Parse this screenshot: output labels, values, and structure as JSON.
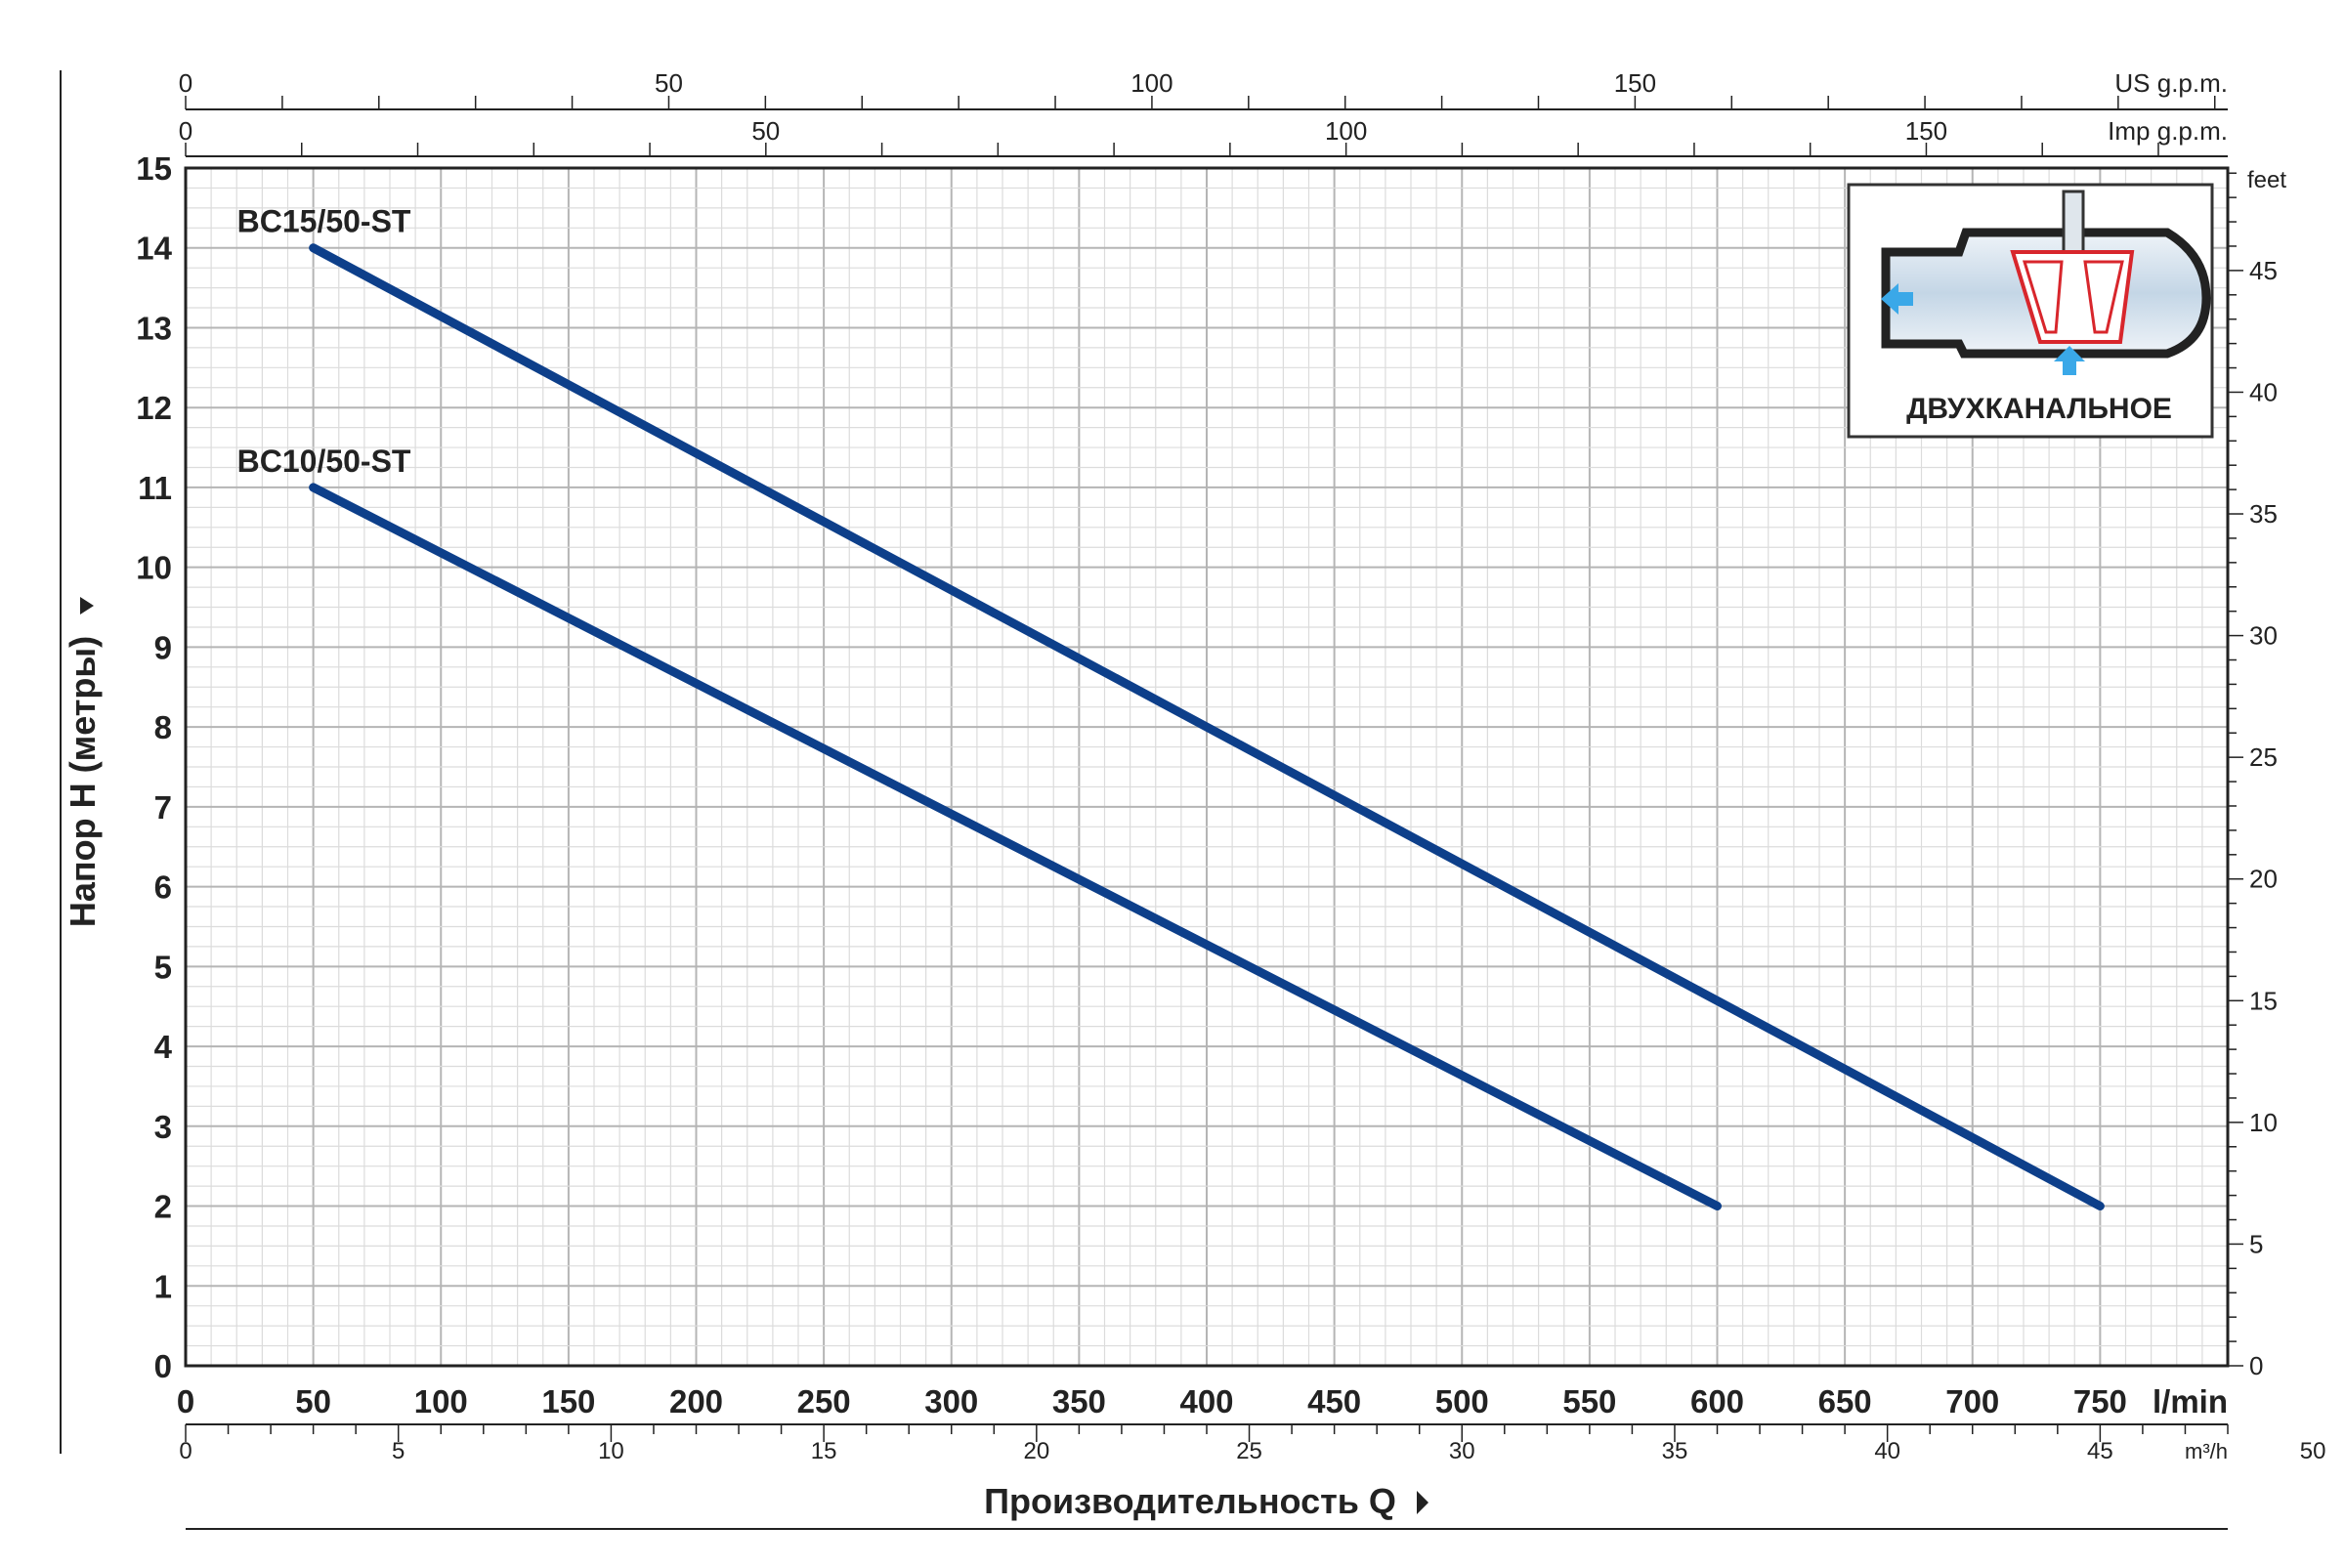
{
  "chart_data": {
    "type": "line",
    "xlabel": "Производительность Q",
    "ylabel": "Напор H (метры)",
    "x_unit_label": "l/min",
    "xlim": [
      0,
      800
    ],
    "ylim": [
      0,
      15
    ],
    "x_ticks": [
      0,
      50,
      100,
      150,
      200,
      250,
      300,
      350,
      400,
      450,
      500,
      550,
      600,
      650,
      700,
      750
    ],
    "y_ticks": [
      0,
      1,
      2,
      3,
      4,
      5,
      6,
      7,
      8,
      9,
      10,
      11,
      12,
      13,
      14,
      15
    ],
    "grid": true,
    "series": [
      {
        "name": "BC15/50-ST",
        "color": "#0d3f8a",
        "x": [
          50,
          750
        ],
        "y": [
          14,
          2
        ]
      },
      {
        "name": "BC10/50-ST",
        "color": "#0d3f8a",
        "x": [
          50,
          600
        ],
        "y": [
          11,
          2
        ]
      }
    ],
    "secondary_axes": {
      "us_gpm": {
        "label": "US g.p.m.",
        "max": 211.34,
        "ticks": [
          0,
          50,
          100,
          150
        ]
      },
      "imp_gpm": {
        "label": "Imp g.p.m.",
        "max": 175.98,
        "ticks": [
          0,
          50,
          100,
          150
        ]
      },
      "m3h": {
        "label": "m³/h",
        "max": 48,
        "ticks": [
          0,
          5,
          10,
          15,
          20,
          25,
          30,
          35,
          40,
          45,
          50
        ]
      },
      "feet": {
        "label": "feet",
        "max": 49.21,
        "ticks": [
          0,
          5,
          10,
          15,
          20,
          25,
          30,
          35,
          40,
          45
        ]
      }
    }
  },
  "inset": {
    "caption": "ДВУХКАНАЛЬНОЕ",
    "icon": "two-channel-impeller-icon"
  },
  "colors": {
    "curve": "#0d3f8a",
    "grid": "#c8c8c8",
    "impeller": "#d8262c",
    "water": "#3aa8e8"
  }
}
